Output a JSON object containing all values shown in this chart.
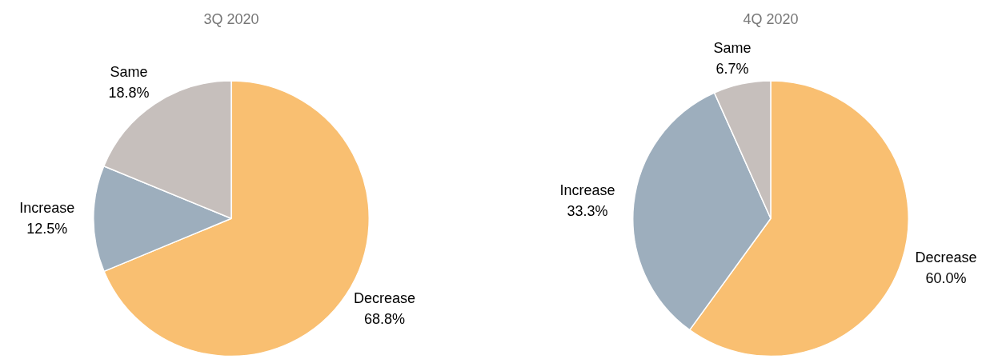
{
  "chart_data": [
    {
      "type": "pie",
      "title": "3Q 2020",
      "categories": [
        "Decrease",
        "Increase",
        "Same"
      ],
      "values": [
        68.8,
        12.5,
        18.8
      ],
      "colors": [
        "#f9bf71",
        "#9daebd",
        "#c6bfbc"
      ],
      "value_labels": [
        "68.8%",
        "12.5%",
        "18.8%"
      ]
    },
    {
      "type": "pie",
      "title": "4Q 2020",
      "categories": [
        "Decrease",
        "Increase",
        "Same"
      ],
      "values": [
        60.0,
        33.3,
        6.7
      ],
      "colors": [
        "#f9bf71",
        "#9daebd",
        "#c6bfbc"
      ],
      "value_labels": [
        "60.0%",
        "33.3%",
        "6.7%"
      ]
    }
  ]
}
